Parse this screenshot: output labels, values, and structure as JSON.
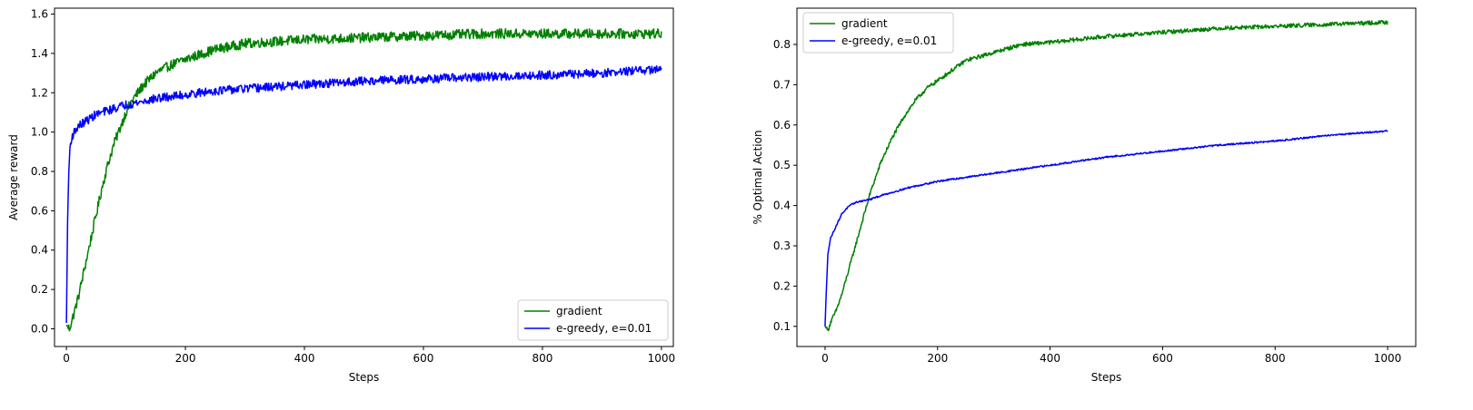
{
  "chart_data": [
    {
      "type": "line",
      "title": "",
      "xlabel": "Steps",
      "ylabel": "Average reward",
      "xlim": [
        -20,
        1020
      ],
      "ylim": [
        -0.09,
        1.63
      ],
      "xticks": [
        0,
        200,
        400,
        600,
        800,
        1000
      ],
      "xtick_labels": [
        "0",
        "200",
        "400",
        "600",
        "800",
        "1000"
      ],
      "yticks": [
        0.0,
        0.2,
        0.4,
        0.6,
        0.8,
        1.0,
        1.2,
        1.4,
        1.6
      ],
      "ytick_labels": [
        "0.0",
        "0.2",
        "0.4",
        "0.6",
        "0.8",
        "1.0",
        "1.2",
        "1.4",
        "1.6"
      ],
      "grid": false,
      "legend_position": "lower-right",
      "series": [
        {
          "name": "gradient",
          "color": "#008000",
          "noise": 0.025,
          "x": [
            0,
            5,
            10,
            20,
            30,
            40,
            50,
            60,
            70,
            80,
            90,
            100,
            110,
            120,
            130,
            140,
            150,
            175,
            200,
            250,
            300,
            400,
            500,
            600,
            700,
            800,
            900,
            1000
          ],
          "y": [
            0.02,
            0.0,
            0.05,
            0.16,
            0.3,
            0.44,
            0.58,
            0.72,
            0.84,
            0.94,
            1.02,
            1.1,
            1.16,
            1.2,
            1.24,
            1.27,
            1.3,
            1.34,
            1.37,
            1.42,
            1.45,
            1.47,
            1.48,
            1.49,
            1.5,
            1.5,
            1.5,
            1.5
          ]
        },
        {
          "name": "e-greedy, e=0.01",
          "color": "#0000ff",
          "noise": 0.022,
          "x": [
            0,
            2,
            4,
            6,
            8,
            10,
            15,
            20,
            30,
            40,
            50,
            60,
            80,
            100,
            120,
            150,
            200,
            250,
            300,
            400,
            500,
            600,
            700,
            800,
            900,
            1000
          ],
          "y": [
            0.03,
            0.55,
            0.8,
            0.92,
            0.96,
            0.98,
            1.01,
            1.03,
            1.05,
            1.07,
            1.09,
            1.1,
            1.12,
            1.14,
            1.15,
            1.17,
            1.19,
            1.21,
            1.22,
            1.24,
            1.26,
            1.27,
            1.28,
            1.29,
            1.3,
            1.32
          ]
        }
      ]
    },
    {
      "type": "line",
      "title": "",
      "xlabel": "Steps",
      "ylabel": "% Optimal Action",
      "xlim": [
        -50,
        1050
      ],
      "ylim": [
        0.05,
        0.89
      ],
      "xticks": [
        0,
        200,
        400,
        600,
        800,
        1000
      ],
      "xtick_labels": [
        "0",
        "200",
        "400",
        "600",
        "800",
        "1000"
      ],
      "yticks": [
        0.1,
        0.2,
        0.3,
        0.4,
        0.5,
        0.6,
        0.7,
        0.8
      ],
      "ytick_labels": [
        "0.1",
        "0.2",
        "0.3",
        "0.4",
        "0.5",
        "0.6",
        "0.7",
        "0.8"
      ],
      "grid": false,
      "legend_position": "upper-left",
      "series": [
        {
          "name": "gradient",
          "color": "#008000",
          "noise": 0.005,
          "x": [
            0,
            5,
            10,
            20,
            30,
            40,
            50,
            60,
            70,
            80,
            90,
            100,
            120,
            140,
            160,
            180,
            200,
            250,
            300,
            350,
            400,
            500,
            600,
            700,
            800,
            900,
            1000
          ],
          "y": [
            0.1,
            0.09,
            0.11,
            0.14,
            0.18,
            0.23,
            0.28,
            0.33,
            0.38,
            0.43,
            0.47,
            0.51,
            0.57,
            0.62,
            0.66,
            0.69,
            0.71,
            0.76,
            0.78,
            0.8,
            0.805,
            0.82,
            0.83,
            0.84,
            0.845,
            0.85,
            0.855
          ]
        },
        {
          "name": "e-greedy, e=0.01",
          "color": "#0000ff",
          "noise": 0.002,
          "x": [
            0,
            2,
            5,
            10,
            20,
            30,
            40,
            50,
            60,
            80,
            100,
            150,
            200,
            300,
            400,
            500,
            600,
            700,
            800,
            900,
            1000
          ],
          "y": [
            0.1,
            0.18,
            0.28,
            0.32,
            0.35,
            0.38,
            0.395,
            0.405,
            0.41,
            0.415,
            0.425,
            0.445,
            0.46,
            0.48,
            0.5,
            0.52,
            0.535,
            0.55,
            0.56,
            0.575,
            0.585
          ]
        }
      ]
    }
  ]
}
